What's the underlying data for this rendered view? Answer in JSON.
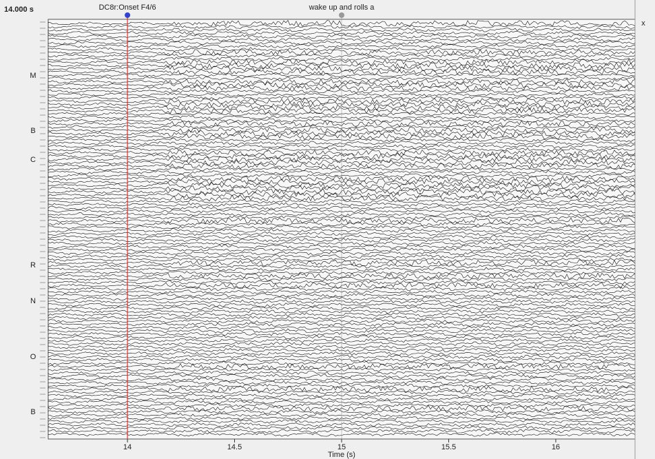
{
  "header": {
    "time_readout": "14.000 s"
  },
  "time_axis": {
    "label": "Time (s)",
    "xlim": [
      13.63,
      16.37
    ],
    "xticks": [
      14,
      14.5,
      15,
      15.5,
      16
    ]
  },
  "annotations": [
    {
      "label": "DC8r:Onset F4/6",
      "time": 14,
      "color": "#e03030"
    },
    {
      "label": "wake up and rolls a",
      "time": 15,
      "color": "#888888"
    }
  ],
  "channel_groups": [
    "M",
    "B",
    "C",
    "R",
    "N",
    "O",
    "B"
  ],
  "side_controls": {
    "close": "x"
  }
}
